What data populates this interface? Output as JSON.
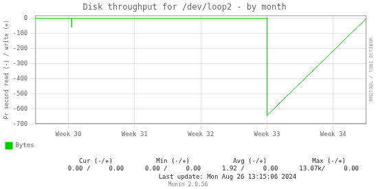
{
  "chart_data": {
    "type": "line",
    "title": "Disk throughput for /dev/loop2 - by month",
    "ylabel": "Pr second read (-) / write (+)",
    "x": [
      0,
      0.55,
      0.55,
      0.55,
      3.5,
      3.5,
      3.5,
      5
    ],
    "series": [
      {
        "name": "Bytes",
        "color": "#00cc00",
        "values": [
          0,
          0,
          -60,
          0,
          0,
          5,
          -645,
          0
        ]
      }
    ],
    "xlim": [
      0,
      5
    ],
    "xticks": [
      {
        "value": 0.5,
        "label": "Week 30"
      },
      {
        "value": 1.5,
        "label": "Week 31"
      },
      {
        "value": 2.5,
        "label": "Week 32"
      },
      {
        "value": 3.5,
        "label": "Week 33"
      },
      {
        "value": 4.5,
        "label": "Week 34"
      }
    ],
    "ylim": [
      -700,
      20
    ],
    "yticks": [
      0,
      -100,
      -200,
      -300,
      -400,
      -500,
      -600,
      -700
    ],
    "grid": true,
    "legend": "lower left",
    "stats": {
      "headers": [
        "Cur (-/+)",
        "Min (-/+)",
        "Avg (-/+)",
        "Max (-/+)"
      ],
      "values": [
        "0.00 /     0.00",
        "0.00 /     0.00",
        "1.92 /     0.00",
        "13.07k/     0.00"
      ]
    },
    "annotations": [
      "RRDTOOL / TOBI OETIKER",
      "Last update: Mon Aug 26 13:15:06 2024",
      "Munin 2.0.56"
    ]
  }
}
